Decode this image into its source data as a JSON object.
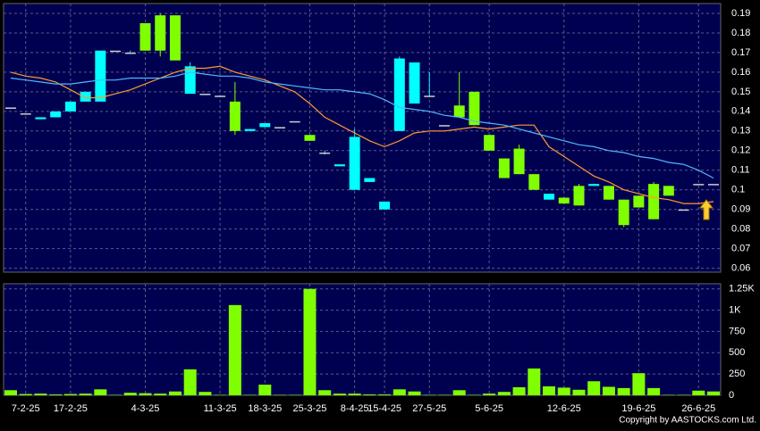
{
  "chart_data": {
    "type": "candlestick",
    "categories": [
      null,
      "7-2-25",
      null,
      null,
      "17-2-25",
      null,
      null,
      null,
      null,
      "4-3-25",
      null,
      null,
      null,
      null,
      "11-3-25",
      null,
      null,
      "18-3-25",
      null,
      null,
      "25-3-25",
      null,
      null,
      "8-4-25",
      null,
      "15-4-25",
      null,
      null,
      "27-5-25",
      null,
      null,
      null,
      "5-6-25",
      null,
      null,
      null,
      null,
      "12-6-25",
      null,
      null,
      null,
      null,
      "19-6-25",
      null,
      null,
      null,
      "26-6-25",
      null
    ],
    "open": [
      0.142,
      0.139,
      0.136,
      0.137,
      0.14,
      0.145,
      0.145,
      0.171,
      0.17,
      0.185,
      0.189,
      0.189,
      0.149,
      0.149,
      0.148,
      0.145,
      0.13,
      0.132,
      0.132,
      0.135,
      0.128,
      0.119,
      0.112,
      0.1,
      0.104,
      0.09,
      0.13,
      0.144,
      0.148,
      0.133,
      0.143,
      0.15,
      0.128,
      0.116,
      0.121,
      0.108,
      0.095,
      0.096,
      0.102,
      0.102,
      0.102,
      0.095,
      0.097,
      0.103,
      0.102,
      0.09,
      0.103,
      0.103
    ],
    "high": [
      0.142,
      0.139,
      0.137,
      0.14,
      0.145,
      0.15,
      0.171,
      0.171,
      0.171,
      0.185,
      0.19,
      0.189,
      0.165,
      0.149,
      0.148,
      0.155,
      0.131,
      0.134,
      0.132,
      0.135,
      0.128,
      0.12,
      0.113,
      0.131,
      0.106,
      0.094,
      0.168,
      0.165,
      0.16,
      0.133,
      0.16,
      0.15,
      0.128,
      0.116,
      0.123,
      0.108,
      0.098,
      0.096,
      0.103,
      0.103,
      0.102,
      0.095,
      0.097,
      0.104,
      0.102,
      0.09,
      0.103,
      0.103
    ],
    "low": [
      0.142,
      0.139,
      0.136,
      0.137,
      0.14,
      0.145,
      0.145,
      0.171,
      0.17,
      0.171,
      0.168,
      0.166,
      0.149,
      0.149,
      0.148,
      0.128,
      0.13,
      0.132,
      0.132,
      0.135,
      0.125,
      0.118,
      0.112,
      0.1,
      0.104,
      0.09,
      0.13,
      0.144,
      0.148,
      0.133,
      0.137,
      0.133,
      0.12,
      0.106,
      0.108,
      0.1,
      0.095,
      0.093,
      0.092,
      0.102,
      0.095,
      0.081,
      0.091,
      0.085,
      0.097,
      0.09,
      0.103,
      0.103
    ],
    "close": [
      0.142,
      0.139,
      0.137,
      0.14,
      0.145,
      0.15,
      0.171,
      0.171,
      0.17,
      0.171,
      0.171,
      0.166,
      0.163,
      0.149,
      0.148,
      0.13,
      0.131,
      0.134,
      0.132,
      0.135,
      0.125,
      0.119,
      0.113,
      0.127,
      0.106,
      0.094,
      0.167,
      0.165,
      0.148,
      0.133,
      0.137,
      0.133,
      0.12,
      0.106,
      0.108,
      0.1,
      0.098,
      0.093,
      0.092,
      0.103,
      0.095,
      0.082,
      0.091,
      0.085,
      0.097,
      0.09,
      0.103,
      0.103
    ],
    "volume": [
      60,
      15,
      20,
      10,
      15,
      20,
      70,
      5,
      30,
      25,
      20,
      45,
      305,
      40,
      5,
      1060,
      5,
      125,
      5,
      5,
      1250,
      60,
      20,
      20,
      10,
      10,
      70,
      45,
      5,
      5,
      60,
      5,
      20,
      40,
      95,
      315,
      105,
      90,
      65,
      165,
      100,
      85,
      260,
      85,
      5,
      5,
      55,
      45
    ],
    "ma": [
      {
        "color": "#ff9a30",
        "values": [
          0.16,
          0.158,
          0.157,
          0.155,
          0.151,
          0.147,
          0.147,
          0.149,
          0.151,
          0.154,
          0.157,
          0.16,
          0.162,
          0.162,
          0.163,
          0.16,
          0.158,
          0.156,
          0.153,
          0.15,
          0.144,
          0.137,
          0.133,
          0.129,
          0.125,
          0.122,
          0.125,
          0.129,
          0.13,
          0.13,
          0.131,
          0.132,
          0.131,
          0.132,
          0.133,
          0.133,
          0.122,
          0.117,
          0.112,
          0.107,
          0.104,
          0.1,
          0.098,
          0.096,
          0.095,
          0.093,
          0.093,
          0.094
        ]
      },
      {
        "color": "#4fb8ff",
        "values": [
          0.157,
          0.156,
          0.155,
          0.154,
          0.154,
          0.155,
          0.156,
          0.156,
          0.157,
          0.157,
          0.157,
          0.158,
          0.16,
          0.159,
          0.158,
          0.158,
          0.157,
          0.155,
          0.154,
          0.153,
          0.152,
          0.151,
          0.151,
          0.15,
          0.149,
          0.146,
          0.142,
          0.141,
          0.14,
          0.138,
          0.137,
          0.135,
          0.134,
          0.133,
          0.131,
          0.129,
          0.127,
          0.125,
          0.123,
          0.122,
          0.12,
          0.119,
          0.117,
          0.116,
          0.114,
          0.113,
          0.11,
          0.106
        ]
      }
    ],
    "up_color": "#00ffff",
    "down_color": "#80ff00",
    "volume_color": "#80ff00",
    "ylim": [
      0.058,
      0.195
    ],
    "yticks": [
      0.06,
      0.07,
      0.08,
      0.09,
      0.1,
      0.11,
      0.12,
      0.13,
      0.14,
      0.15,
      0.16,
      0.17,
      0.18,
      0.19
    ],
    "volume_ylim": [
      0,
      1310
    ],
    "volume_yticks": [
      0,
      250,
      500,
      750,
      {
        "value": 1000,
        "label": "1K"
      },
      {
        "value": 1250,
        "label": "1.25K"
      }
    ],
    "grid": true
  },
  "copyright": "Copyright by AASTOCKS.com Ltd."
}
